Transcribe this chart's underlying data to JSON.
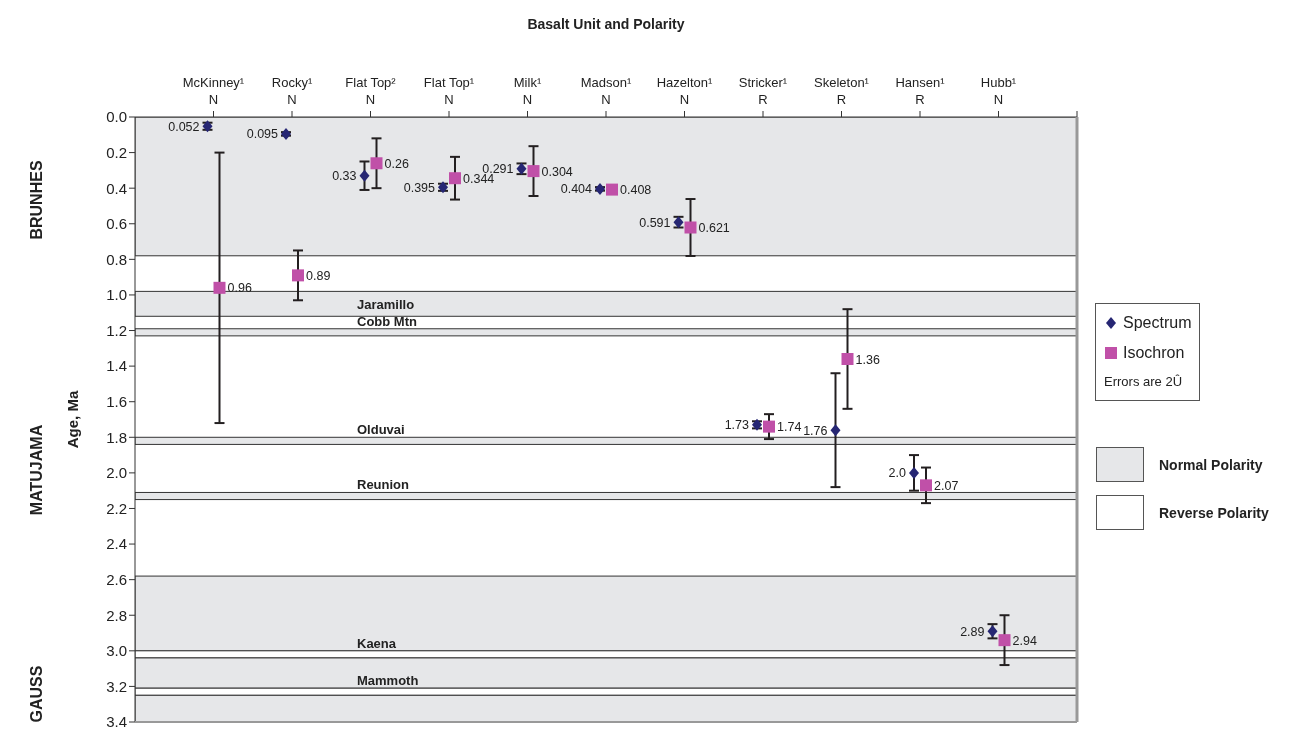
{
  "chart_data": {
    "type": "scatter",
    "title": "Basalt Unit and Polarity",
    "ylabel": "Age, Ma",
    "categories": [
      "McKinney¹\nN",
      "Rocky¹\nN",
      "Flat Top²\nN",
      "Flat Top¹\nN",
      "Milk¹\nN",
      "Madson¹\nN",
      "Hazelton¹\nN",
      "Stricker¹\nR",
      "Skeleton¹\nR",
      "Hansen¹\nR",
      "Hubb¹\nN"
    ],
    "series": [
      {
        "name": "Spectrum",
        "color": "#262673",
        "marker": "diamond",
        "values": [
          0.052,
          0.095,
          0.33,
          0.395,
          0.291,
          0.404,
          0.591,
          1.73,
          1.76,
          2.0,
          2.89
        ],
        "errors": [
          0.02,
          0.01,
          0.08,
          0.02,
          0.03,
          0.01,
          0.03,
          0.02,
          0.32,
          0.1,
          0.04
        ],
        "value_labels": [
          "0.052",
          "0.095",
          "0.33",
          "0.395",
          "0.291",
          "0.404",
          "0.591",
          "1.73",
          "1.76",
          "2.0",
          "2.89"
        ]
      },
      {
        "name": "Isochron",
        "color": "#c050a8",
        "marker": "square",
        "values": [
          0.96,
          0.89,
          0.26,
          0.344,
          0.304,
          0.408,
          0.621,
          1.74,
          1.36,
          2.07,
          2.94
        ],
        "errors": [
          0.76,
          0.14,
          0.14,
          0.12,
          0.14,
          0.01,
          0.16,
          0.07,
          0.28,
          0.1,
          0.14
        ],
        "value_labels": [
          "0.96",
          "0.89",
          "0.26",
          "0.344",
          "0.304",
          "0.408",
          "0.621",
          "1.74",
          "1.36",
          "2.07",
          "2.94"
        ]
      }
    ],
    "ylim": [
      3.4,
      0
    ],
    "yticks": [
      {
        "value": 0,
        "label": "0.0"
      },
      0.2,
      0.4,
      0.6,
      0.8,
      {
        "value": 1,
        "label": "1.0"
      },
      1.2,
      1.4,
      1.6,
      1.8,
      {
        "value": 2,
        "label": "2.0"
      },
      2.2,
      2.4,
      2.6,
      2.8,
      {
        "value": 3,
        "label": "3.0"
      },
      3.2,
      3.4
    ],
    "bands": [
      {
        "axis": "y",
        "from": 0,
        "to": 0.78,
        "color": "#e6e7e9"
      },
      {
        "axis": "y",
        "from": 0.98,
        "to": 1.12,
        "color": "#e6e7e9",
        "label": "Jaramillo"
      },
      {
        "axis": "y",
        "from": 1.19,
        "to": 1.23,
        "color": "#e6e7e9",
        "label": "Cobb Mtn"
      },
      {
        "axis": "y",
        "from": 1.8,
        "to": 1.84,
        "color": "#e6e7e9",
        "label": "Olduvai"
      },
      {
        "axis": "y",
        "from": 2.11,
        "to": 2.15,
        "color": "#e6e7e9",
        "label": "Reunion"
      },
      {
        "axis": "y",
        "from": 2.58,
        "to": 3.0,
        "color": "#e6e7e9"
      },
      {
        "axis": "y",
        "from": 3.0,
        "to": 3.04,
        "color": "#ffffff",
        "label": "Kaena"
      },
      {
        "axis": "y",
        "from": 3.04,
        "to": 3.21,
        "color": "#e6e7e9"
      },
      {
        "axis": "y",
        "from": 3.21,
        "to": 3.25,
        "color": "#ffffff",
        "label": "Mammoth"
      },
      {
        "axis": "y",
        "from": 3.25,
        "to": 3.4,
        "color": "#e6e7e9"
      }
    ],
    "annotations": [
      "BRUNHES",
      "MATUJAMA",
      "GAUSS",
      "Errors are 2Û",
      "Normal Polarity",
      "Reverse Polarity"
    ],
    "legend": "right"
  }
}
